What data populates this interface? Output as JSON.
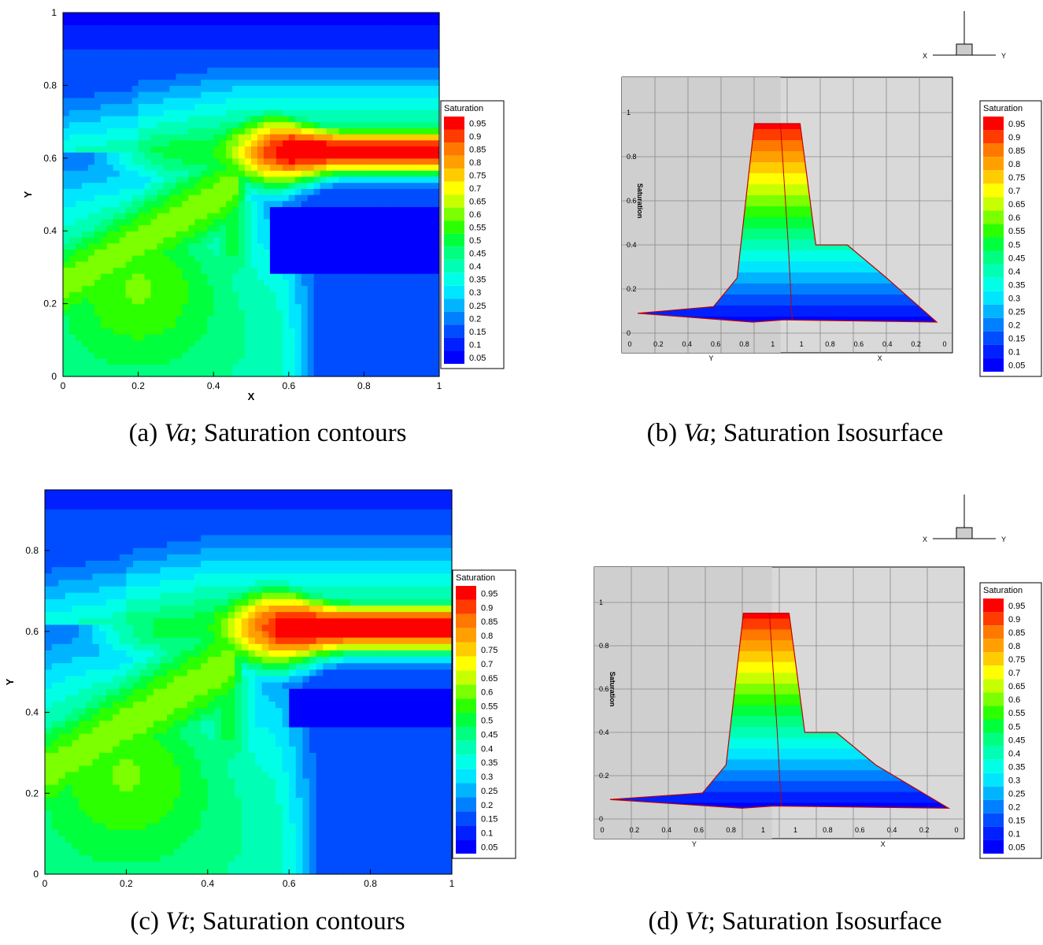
{
  "legend": {
    "title": "Saturation",
    "levels": [
      "0.95",
      "0.9",
      "0.85",
      "0.8",
      "0.75",
      "0.7",
      "0.65",
      "0.6",
      "0.55",
      "0.5",
      "0.45",
      "0.4",
      "0.35",
      "0.3",
      "0.25",
      "0.2",
      "0.15",
      "0.1",
      "0.05"
    ],
    "colors": [
      "#ff0000",
      "#ff3c00",
      "#ff7800",
      "#ffa000",
      "#ffcc00",
      "#ffff00",
      "#c8ff00",
      "#7cff00",
      "#2cff00",
      "#00ff3c",
      "#00ff80",
      "#00ffb4",
      "#00ffe6",
      "#00e6ff",
      "#00b4ff",
      "#0080ff",
      "#004cff",
      "#0020ff",
      "#0000ff"
    ]
  },
  "captions": {
    "a": {
      "tag": "(a) ",
      "var": "Va",
      "rest": "; Saturation contours"
    },
    "b": {
      "tag": "(b) ",
      "var": "Va",
      "rest": "; Saturation Isosurface"
    },
    "c": {
      "tag": "(c) ",
      "var": "Vt",
      "rest": "; Saturation contours"
    },
    "d": {
      "tag": "(d) ",
      "var": "Vt",
      "rest": "; Saturation Isosurface"
    }
  },
  "chart_data": [
    {
      "type": "heatmap",
      "panel": "a",
      "title": "",
      "xlabel": "X",
      "ylabel": "Y",
      "xlim": [
        0,
        1
      ],
      "ylim": [
        0,
        1
      ],
      "xticks": [
        "0",
        "0.2",
        "0.4",
        "0.6",
        "0.8",
        "1"
      ],
      "yticks": [
        "0",
        "0.2",
        "0.4",
        "0.6",
        "0.8",
        "1"
      ],
      "colorbar_title": "Saturation",
      "colorbar_levels": [
        0.95,
        0.9,
        0.85,
        0.8,
        0.75,
        0.7,
        0.65,
        0.6,
        0.55,
        0.5,
        0.45,
        0.4,
        0.35,
        0.3,
        0.25,
        0.2,
        0.15,
        0.1,
        0.05
      ],
      "features": {
        "plume_core_y": 0.62,
        "plume_start_x": 0.52,
        "plume_max": 0.95,
        "background_min": 0.05,
        "low_saturation_pocket": {
          "x": [
            0.55,
            1.0
          ],
          "y": [
            0.29,
            0.46
          ]
        }
      }
    },
    {
      "type": "area",
      "panel": "b",
      "title": "",
      "zlabel": "Saturation",
      "ylabel": "Y",
      "xlabel": "X",
      "zlim": [
        0,
        1
      ],
      "zticks": [
        "0",
        "0.2",
        "0.4",
        "0.6",
        "0.8",
        "1"
      ],
      "base_ticks": [
        "0",
        "0.2",
        "0.4",
        "0.6",
        "0.8",
        "1",
        "1",
        "0.8",
        "0.6",
        "0.4",
        "0.2",
        "0"
      ],
      "axis_triad": {
        "left": "X",
        "right": "Y"
      },
      "colorbar_title": "Saturation",
      "colorbar_levels": [
        0.95,
        0.9,
        0.85,
        0.8,
        0.75,
        0.7,
        0.65,
        0.6,
        0.55,
        0.5,
        0.45,
        0.4,
        0.35,
        0.3,
        0.25,
        0.2,
        0.15,
        0.1,
        0.05
      ],
      "features": {
        "peak": 0.95,
        "shoulder": 0.4,
        "base": 0.05
      }
    },
    {
      "type": "heatmap",
      "panel": "c",
      "title": "",
      "xlabel": "",
      "ylabel": "Y",
      "xlim": [
        0,
        1
      ],
      "ylim": [
        0,
        0.95
      ],
      "xticks": [
        "0",
        "0.2",
        "0.4",
        "0.6",
        "0.8",
        "1"
      ],
      "yticks": [
        "0",
        "0.2",
        "0.4",
        "0.6",
        "0.8"
      ],
      "colorbar_title": "Saturation",
      "colorbar_levels": [
        0.95,
        0.9,
        0.85,
        0.8,
        0.75,
        0.7,
        0.65,
        0.6,
        0.55,
        0.5,
        0.45,
        0.4,
        0.35,
        0.3,
        0.25,
        0.2,
        0.15,
        0.1,
        0.05
      ],
      "features": {
        "plume_core_y": 0.61,
        "plume_start_x": 0.52,
        "plume_max": 0.95,
        "background_min": 0.05,
        "low_saturation_pocket": {
          "x": [
            0.6,
            1.0
          ],
          "y": [
            0.37,
            0.46
          ]
        }
      }
    },
    {
      "type": "area",
      "panel": "d",
      "title": "",
      "zlabel": "Saturation",
      "ylabel": "Y",
      "xlabel": "X",
      "zlim": [
        0,
        1
      ],
      "zticks": [
        "0",
        "0.2",
        "0.4",
        "0.6",
        "0.8",
        "1"
      ],
      "base_ticks": [
        "0",
        "0.2",
        "0.4",
        "0.6",
        "0.8",
        "1",
        "1",
        "0.8",
        "0.6",
        "0.4",
        "0.2",
        "0"
      ],
      "axis_triad": {
        "left": "X",
        "right": "Y"
      },
      "colorbar_title": "Saturation",
      "colorbar_levels": [
        0.95,
        0.9,
        0.85,
        0.8,
        0.75,
        0.7,
        0.65,
        0.6,
        0.55,
        0.5,
        0.45,
        0.4,
        0.35,
        0.3,
        0.25,
        0.2,
        0.15,
        0.1,
        0.05
      ],
      "features": {
        "peak": 0.95,
        "shoulder": 0.4,
        "base": 0.05
      }
    }
  ]
}
